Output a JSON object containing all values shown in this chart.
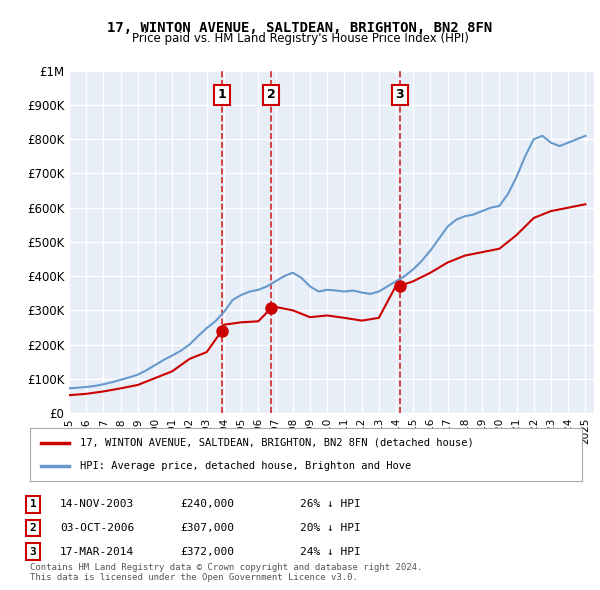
{
  "title": "17, WINTON AVENUE, SALTDEAN, BRIGHTON, BN2 8FN",
  "subtitle": "Price paid vs. HM Land Registry's House Price Index (HPI)",
  "ylabel": "",
  "ylim": [
    0,
    1000000
  ],
  "yticks": [
    0,
    100000,
    200000,
    300000,
    400000,
    500000,
    600000,
    700000,
    800000,
    900000,
    1000000
  ],
  "ytick_labels": [
    "£0",
    "£100K",
    "£200K",
    "£300K",
    "£400K",
    "£500K",
    "£600K",
    "£700K",
    "£800K",
    "£900K",
    "£1M"
  ],
  "background_color": "#ffffff",
  "plot_bg_color": "#e8eef8",
  "grid_color": "#ffffff",
  "hpi_color": "#6699cc",
  "price_color": "#cc0000",
  "sale_marker_color": "#cc0000",
  "vline_color": "#cc0000",
  "purchases": [
    {
      "date": "2003-11-14",
      "price": 240000,
      "label": "1",
      "pct": "26%",
      "dir": "↓"
    },
    {
      "date": "2006-10-03",
      "price": 307000,
      "label": "2",
      "pct": "20%",
      "dir": "↓"
    },
    {
      "date": "2014-03-17",
      "price": 372000,
      "label": "3",
      "pct": "24%",
      "dir": "↓"
    }
  ],
  "legend_property_label": "17, WINTON AVENUE, SALTDEAN, BRIGHTON, BN2 8FN (detached house)",
  "legend_hpi_label": "HPI: Average price, detached house, Brighton and Hove",
  "footnote": "Contains HM Land Registry data © Crown copyright and database right 2024.\nThis data is licensed under the Open Government Licence v3.0.",
  "table_rows": [
    {
      "num": "1",
      "date": "14-NOV-2003",
      "price": "£240,000",
      "pct": "26% ↓ HPI"
    },
    {
      "num": "2",
      "date": "03-OCT-2006",
      "price": "£307,000",
      "pct": "20% ↓ HPI"
    },
    {
      "num": "3",
      "date": "17-MAR-2014",
      "price": "£372,000",
      "pct": "24% ↓ HPI"
    }
  ]
}
